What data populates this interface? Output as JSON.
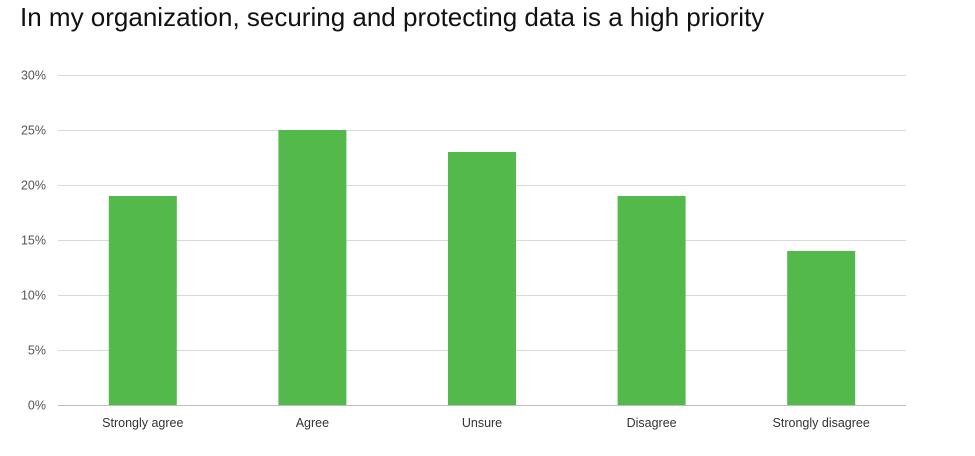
{
  "chart_data": {
    "type": "bar",
    "title": "In my organization, securing and protecting data is a high priority",
    "categories": [
      "Strongly agree",
      "Agree",
      "Unsure",
      "Disagree",
      "Strongly disagree"
    ],
    "values": [
      19,
      25,
      23,
      19,
      14
    ],
    "ylim": [
      0,
      30
    ],
    "yticks": [
      0,
      5,
      10,
      15,
      20,
      25,
      30
    ],
    "ytick_labels": [
      "0%",
      "5%",
      "10%",
      "15%",
      "20%",
      "25%",
      "30%"
    ],
    "xlabel": "",
    "ylabel": "",
    "grid": true,
    "legend": "none",
    "bar_color": "#53b94b",
    "grid_color": "#d9d9d9"
  }
}
